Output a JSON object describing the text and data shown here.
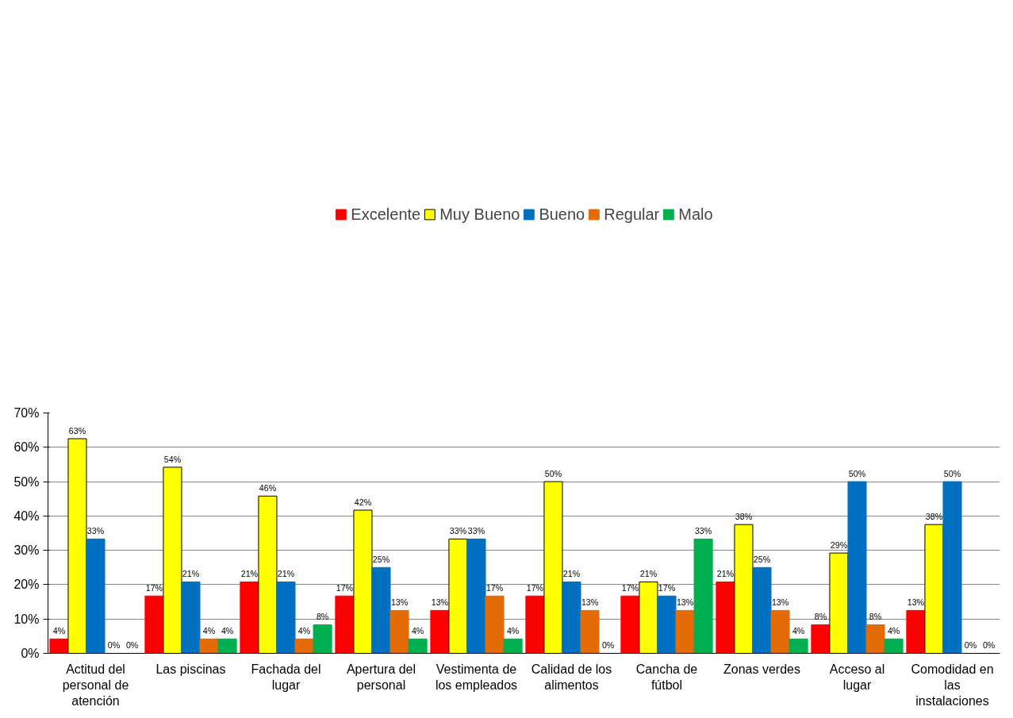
{
  "chart_data": {
    "type": "bar",
    "categories": [
      "Actitud del personal de atención",
      "Las piscinas",
      "Fachada del lugar",
      "Apertura del personal",
      "Vestimenta de los empleados",
      "Calidad de los alimentos",
      "Cancha de fútbol",
      "Zonas verdes",
      "Acceso al lugar",
      "Comodidad en las instalaciones"
    ],
    "series": [
      {
        "name": "Excelente",
        "color": "#ff0000",
        "values": [
          4.2,
          16.7,
          20.8,
          16.7,
          12.5,
          16.7,
          16.7,
          20.8,
          8.3,
          12.5
        ],
        "value_labels": [
          "4%",
          "17%",
          "21%",
          "17%",
          "13%",
          "17%",
          "17%",
          "21%",
          "8%",
          "13%"
        ]
      },
      {
        "name": "Muy Bueno",
        "color": "#ffff00",
        "values": [
          62.5,
          54.2,
          45.8,
          41.7,
          33.3,
          50,
          20.8,
          37.5,
          29.2,
          37.5
        ],
        "value_labels": [
          "63%",
          "54%",
          "46%",
          "42%",
          "33%",
          "50%",
          "21%",
          "38%",
          "29%",
          "38%"
        ]
      },
      {
        "name": "Bueno",
        "color": "#0070c0",
        "values": [
          33.3,
          20.8,
          20.8,
          25,
          33.3,
          20.8,
          16.7,
          25,
          50,
          50
        ],
        "value_labels": [
          "33%",
          "21%",
          "21%",
          "25%",
          "33%",
          "21%",
          "17%",
          "25%",
          "50%",
          "50%"
        ]
      },
      {
        "name": "Regular",
        "color": "#e36c09",
        "values": [
          0,
          4.2,
          4.2,
          12.5,
          16.7,
          12.5,
          12.5,
          12.5,
          8.3,
          0
        ],
        "value_labels": [
          "0%",
          "4%",
          "4%",
          "13%",
          "17%",
          "13%",
          "13%",
          "13%",
          "8%",
          "0%"
        ]
      },
      {
        "name": "Malo",
        "color": "#00b050",
        "values": [
          0,
          4.2,
          8.3,
          4.2,
          4.2,
          0,
          33.3,
          4.2,
          4.2,
          0
        ],
        "value_labels": [
          "0%",
          "4%",
          "8%",
          "4%",
          "4%",
          "0%",
          "33%",
          "4%",
          "4%",
          "0%"
        ]
      }
    ],
    "ylim": [
      0,
      70
    ],
    "yticks": [
      {
        "value": 0,
        "label": "0%"
      },
      {
        "value": 10,
        "label": "10%"
      },
      {
        "value": 20,
        "label": "20%"
      },
      {
        "value": 30,
        "label": "30%"
      },
      {
        "value": 40,
        "label": "40%"
      },
      {
        "value": 50,
        "label": "50%"
      },
      {
        "value": 60,
        "label": "60%"
      },
      {
        "value": 70,
        "label": "70%"
      }
    ],
    "grid": "y",
    "legend": "top"
  }
}
